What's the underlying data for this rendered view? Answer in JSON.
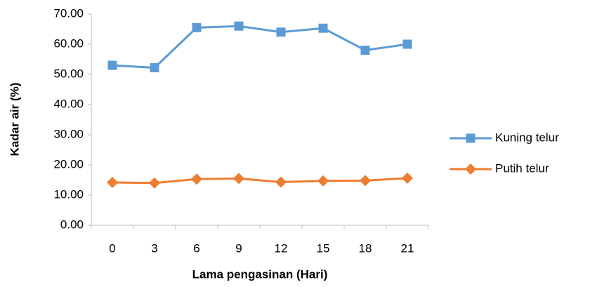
{
  "chart_data": {
    "type": "line",
    "x_label": "Lama pengasinan (Hari)",
    "y_label": "Kadar air (%)",
    "categories": [
      "0",
      "3",
      "6",
      "9",
      "12",
      "15",
      "18",
      "21"
    ],
    "series": [
      {
        "name": "Kuning telur",
        "color": "#5b9bd5",
        "marker": "square",
        "values": [
          53,
          52.2,
          65.5,
          66,
          64,
          65.3,
          58,
          60
        ]
      },
      {
        "name": "Putih telur",
        "color": "#ed7d31",
        "marker": "diamond",
        "values": [
          14.2,
          14,
          15.3,
          15.5,
          14.3,
          14.7,
          14.8,
          15.6
        ]
      }
    ],
    "ylim": [
      0,
      70
    ],
    "yticks": [
      {
        "value": 0,
        "label": "0.00"
      },
      {
        "value": 10,
        "label": "10.00"
      },
      {
        "value": 20,
        "label": "20.00"
      },
      {
        "value": 30,
        "label": "30.00"
      },
      {
        "value": 40,
        "label": "40.00"
      },
      {
        "value": 50,
        "label": "50.00"
      },
      {
        "value": 60,
        "label": "60.00"
      },
      {
        "value": 70,
        "label": "70.00"
      }
    ],
    "legend": "right"
  }
}
